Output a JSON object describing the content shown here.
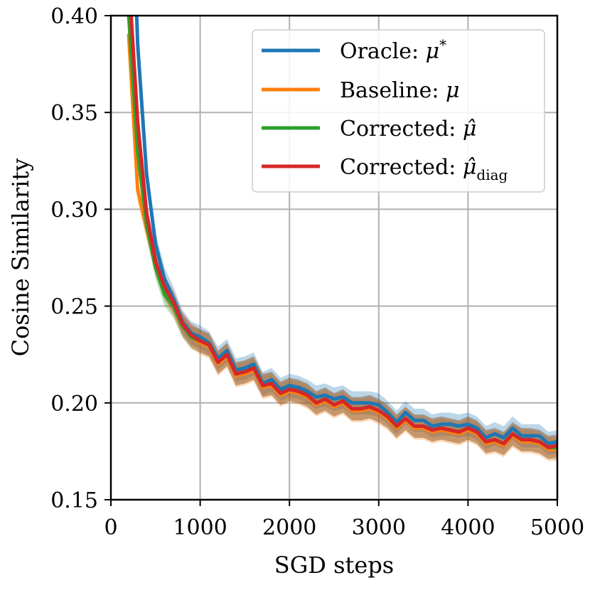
{
  "chart_data": {
    "type": "line",
    "title": "",
    "xlabel": "SGD steps",
    "ylabel": "Cosine Similarity",
    "xlim": [
      0,
      5000
    ],
    "ylim": [
      0.15,
      0.4
    ],
    "xticks": [
      0,
      1000,
      2000,
      3000,
      4000,
      5000
    ],
    "xtick_labels": [
      "0",
      "1000",
      "2000",
      "3000",
      "4000",
      "5000"
    ],
    "yticks": [
      0.15,
      0.2,
      0.25,
      0.3,
      0.35,
      0.4
    ],
    "ytick_labels": [
      "0.15",
      "0.20",
      "0.25",
      "0.30",
      "0.35",
      "0.40"
    ],
    "grid": true,
    "legend_position": "top-right",
    "band_halfwidth": 0.006,
    "x": [
      200,
      300,
      400,
      500,
      600,
      700,
      800,
      900,
      1000,
      1100,
      1200,
      1300,
      1400,
      1500,
      1600,
      1700,
      1800,
      1900,
      2000,
      2100,
      2200,
      2300,
      2400,
      2500,
      2600,
      2700,
      2800,
      2900,
      3000,
      3100,
      3200,
      3300,
      3400,
      3500,
      3600,
      3700,
      3800,
      3900,
      4000,
      4100,
      4200,
      4300,
      4400,
      4500,
      4600,
      4700,
      4800,
      4900,
      5000
    ],
    "series": [
      {
        "name": "Oracle: μ*",
        "color": "#1f77b4",
        "values": [
          0.52,
          0.385,
          0.318,
          0.282,
          0.264,
          0.254,
          0.242,
          0.236,
          0.234,
          0.231,
          0.223,
          0.227,
          0.217,
          0.218,
          0.22,
          0.21,
          0.212,
          0.207,
          0.209,
          0.208,
          0.206,
          0.203,
          0.204,
          0.202,
          0.203,
          0.2,
          0.2,
          0.2,
          0.199,
          0.195,
          0.19,
          0.195,
          0.191,
          0.191,
          0.188,
          0.189,
          0.189,
          0.188,
          0.189,
          0.187,
          0.182,
          0.184,
          0.182,
          0.187,
          0.183,
          0.183,
          0.183,
          0.179,
          0.18
        ]
      },
      {
        "name": "Baseline: μ",
        "color": "#ff7f0e",
        "values": [
          0.39,
          0.31,
          0.29,
          0.272,
          0.259,
          0.251,
          0.24,
          0.234,
          0.231,
          0.229,
          0.22,
          0.224,
          0.214,
          0.215,
          0.217,
          0.208,
          0.209,
          0.204,
          0.206,
          0.205,
          0.203,
          0.199,
          0.201,
          0.198,
          0.2,
          0.196,
          0.196,
          0.197,
          0.195,
          0.192,
          0.187,
          0.191,
          0.187,
          0.187,
          0.185,
          0.186,
          0.185,
          0.184,
          0.186,
          0.184,
          0.179,
          0.18,
          0.178,
          0.183,
          0.18,
          0.18,
          0.179,
          0.176,
          0.176
        ]
      },
      {
        "name": "Corrected: μ̂",
        "color": "#2ca02c",
        "values": [
          0.4,
          0.33,
          0.292,
          0.27,
          0.256,
          0.25,
          0.24,
          0.234,
          0.232,
          0.23,
          0.221,
          0.225,
          0.215,
          0.216,
          0.218,
          0.209,
          0.21,
          0.205,
          0.207,
          0.206,
          0.204,
          0.2,
          0.202,
          0.199,
          0.201,
          0.197,
          0.197,
          0.198,
          0.196,
          0.193,
          0.188,
          0.192,
          0.188,
          0.188,
          0.186,
          0.187,
          0.186,
          0.185,
          0.187,
          0.185,
          0.18,
          0.181,
          0.179,
          0.184,
          0.181,
          0.181,
          0.18,
          0.177,
          0.177
        ]
      },
      {
        "name": "Corrected: μ̂diag",
        "color": "#d62728",
        "values": [
          0.42,
          0.345,
          0.298,
          0.273,
          0.26,
          0.252,
          0.241,
          0.235,
          0.232,
          0.23,
          0.221,
          0.225,
          0.215,
          0.216,
          0.218,
          0.209,
          0.21,
          0.205,
          0.207,
          0.206,
          0.204,
          0.2,
          0.202,
          0.199,
          0.201,
          0.197,
          0.197,
          0.198,
          0.196,
          0.193,
          0.188,
          0.192,
          0.188,
          0.188,
          0.186,
          0.187,
          0.186,
          0.185,
          0.187,
          0.185,
          0.18,
          0.181,
          0.179,
          0.184,
          0.181,
          0.181,
          0.18,
          0.177,
          0.178
        ]
      }
    ]
  },
  "legend": {
    "items": [
      {
        "label": "Oracle: ",
        "math": "μ",
        "sup": "*",
        "sub": "",
        "hat": false
      },
      {
        "label": "Baseline: ",
        "math": "μ",
        "sup": "",
        "sub": "",
        "hat": false
      },
      {
        "label": "Corrected: ",
        "math": "μ̂",
        "sup": "",
        "sub": "",
        "hat": true
      },
      {
        "label": "Corrected: ",
        "math": "μ̂",
        "sup": "",
        "sub": "diag",
        "hat": true
      }
    ]
  }
}
